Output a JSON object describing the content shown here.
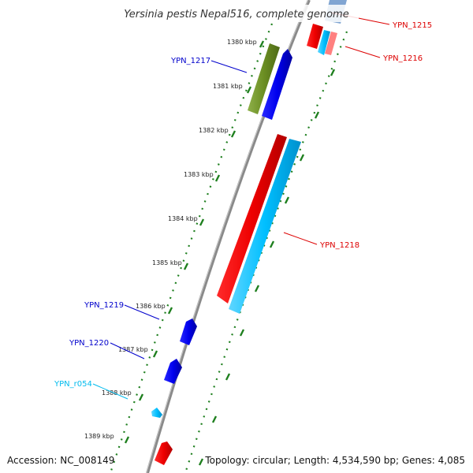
{
  "title": "Yersinia pestis Nepal516, complete genome",
  "footer": {
    "accession": "Accession: NC_008149",
    "summary": "Topology: circular; Length: 4,534,590 bp; Genes: 4,085"
  },
  "scale": {
    "unit": "kbp",
    "ticks": [
      {
        "kbp": 1380,
        "label": "1380 kbp"
      },
      {
        "kbp": 1381,
        "label": "1381 kbp"
      },
      {
        "kbp": 1382,
        "label": "1382 kbp"
      },
      {
        "kbp": 1383,
        "label": "1383 kbp"
      },
      {
        "kbp": 1384,
        "label": "1384 kbp"
      },
      {
        "kbp": 1385,
        "label": "1385 kbp"
      },
      {
        "kbp": 1386,
        "label": "1386 kbp"
      },
      {
        "kbp": 1387,
        "label": "1387 kbp"
      },
      {
        "kbp": 1388,
        "label": "1388 kbp"
      },
      {
        "kbp": 1389,
        "label": "1389 kbp"
      }
    ]
  },
  "colors": {
    "backbone": "#8a8a8a",
    "ticks": "#1e7f1e",
    "gene_blue": "#0000ee",
    "gene_red": "#ee0000",
    "gene_cyan": "#00bfff",
    "gene_olive": "#6b8e23",
    "label_blue": "#0000cc",
    "label_red": "#dd0000",
    "label_cyan": "#00bbee"
  },
  "genes": [
    {
      "id": "YPN_1215",
      "label": "YPN_1215",
      "color": "gene_red"
    },
    {
      "id": "YPN_1216",
      "label": "YPN_1216",
      "color": "gene_red"
    },
    {
      "id": "YPN_1217",
      "label": "YPN_1217",
      "color": "gene_blue"
    },
    {
      "id": "YPN_1218",
      "label": "YPN_1218",
      "color": "gene_red"
    },
    {
      "id": "YPN_1219",
      "label": "YPN_1219",
      "color": "gene_blue"
    },
    {
      "id": "YPN_1220",
      "label": "YPN_1220",
      "color": "gene_blue"
    },
    {
      "id": "YPN_r054",
      "label": "YPN_r054",
      "color": "gene_cyan"
    }
  ]
}
